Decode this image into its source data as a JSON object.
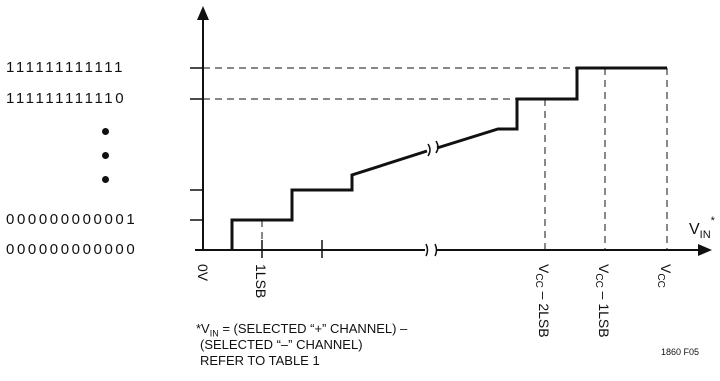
{
  "y_codes": {
    "top": "111111111111",
    "second": "111111111110",
    "bottom_one": "000000000001",
    "bottom_zero": "000000000000"
  },
  "ellipsis_dots": 3,
  "x_axis": {
    "label_main": "V",
    "label_sub": "IN",
    "label_sup": "*",
    "ticks": {
      "zero": "0V",
      "one_lsb": "1LSB",
      "vcc_minus_2lsb": {
        "main": "V",
        "sub": "CC",
        "rest": " – 2LSB"
      },
      "vcc_minus_1lsb": {
        "main": "V",
        "sub": "CC",
        "rest": " – 1LSB"
      },
      "vcc": {
        "main": "V",
        "sub": "CC"
      }
    }
  },
  "footnote": {
    "star": "*V",
    "sub": "IN",
    "line1_rest": " = (SELECTED “+” CHANNEL) –",
    "line2": "(SELECTED “–” CHANNEL)",
    "line3": "REFER TO TABLE 1"
  },
  "figure_number": "1860 F05",
  "colors": {
    "ink": "#111111",
    "background": "#ffffff"
  }
}
